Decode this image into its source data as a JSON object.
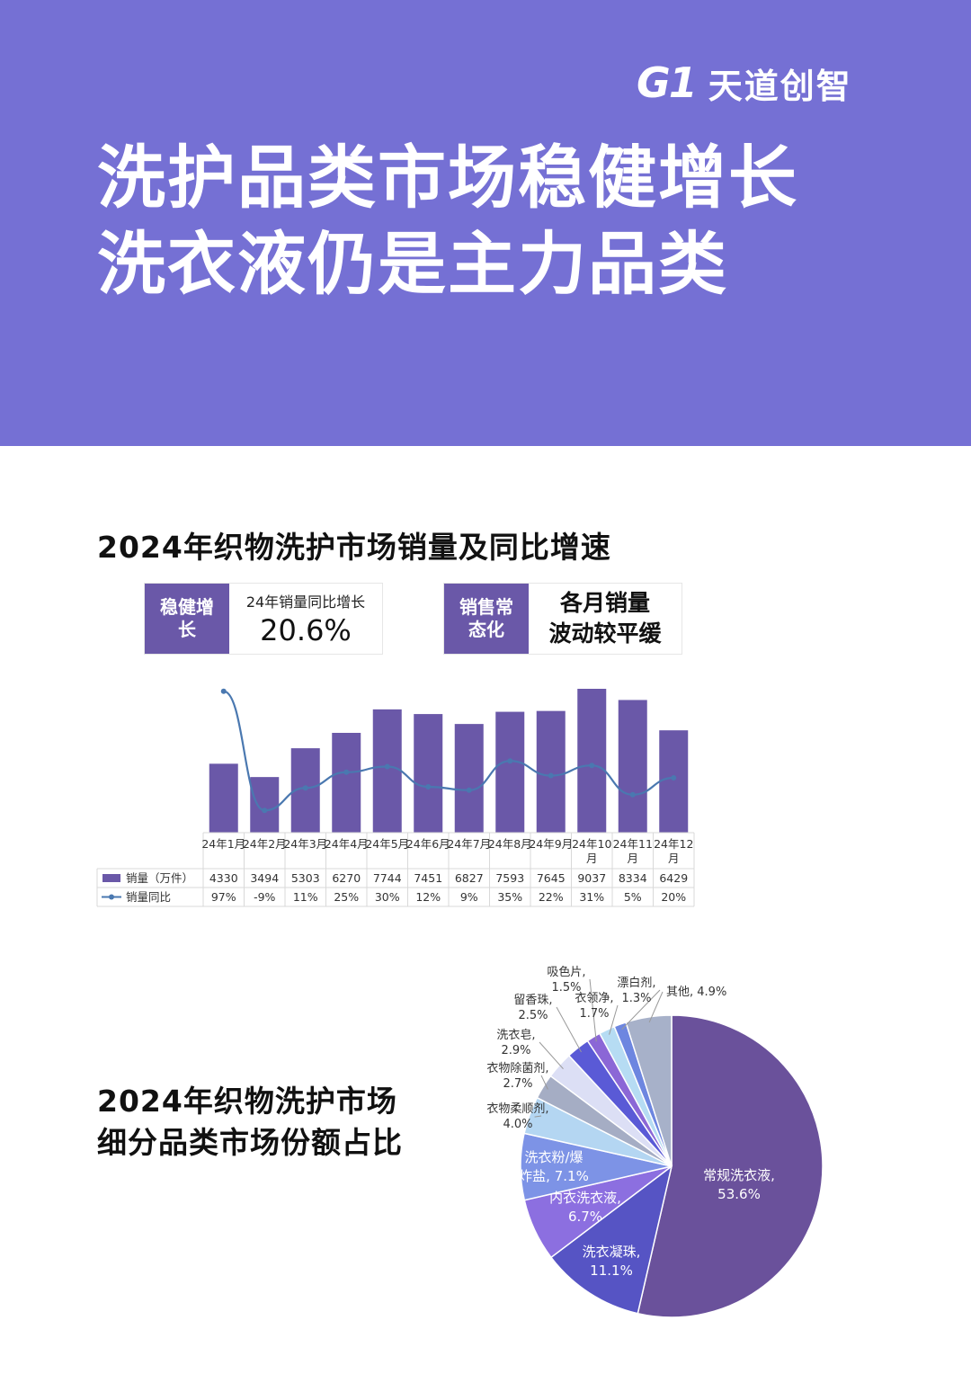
{
  "brand": {
    "logo_mark": "G1",
    "name": "天道创智"
  },
  "hero": {
    "title_line1": "洗护品类市场稳健增长",
    "title_line2": "洗衣液仍是主力品类"
  },
  "section1": {
    "title": "2024年织物洗护市场销量及同比增速",
    "kpi1": {
      "tag": "稳健增长",
      "label": "24年销量同比增长",
      "value": "20.6%"
    },
    "kpi2": {
      "tag": "销售常态化",
      "note_line1": "各月销量",
      "note_line2": "波动较平缓"
    }
  },
  "section2": {
    "title_line1": "2024年织物洗护市场",
    "title_line2": "细分品类市场份额占比"
  },
  "colors": {
    "hero_bg": "#7570d4",
    "bar": "#6a58a8",
    "line": "#4a78b0"
  },
  "chart_data": [
    {
      "type": "bar",
      "categories": [
        "24年1月",
        "24年2月",
        "24年3月",
        "24年4月",
        "24年5月",
        "24年6月",
        "24年7月",
        "24年8月",
        "24年9月",
        "24年10月",
        "24年11月",
        "24年12月"
      ],
      "series": [
        {
          "name": "销量（万件）",
          "type": "bar",
          "values": [
            4330,
            3494,
            5303,
            6270,
            7744,
            7451,
            6827,
            7593,
            7645,
            9037,
            8334,
            6429
          ]
        },
        {
          "name": "销量同比",
          "type": "line",
          "values": [
            97,
            -9,
            11,
            25,
            30,
            12,
            9,
            35,
            22,
            31,
            5,
            20
          ],
          "labels": [
            "97%",
            "-9%",
            "11%",
            "25%",
            "30%",
            "12%",
            "9%",
            "35%",
            "22%",
            "31%",
            "5%",
            "20%"
          ]
        }
      ],
      "table": true
    },
    {
      "type": "pie",
      "slices": [
        {
          "label": "常规洗衣液",
          "value": 53.6,
          "color": "#6a519b"
        },
        {
          "label": "洗衣凝珠",
          "value": 11.1,
          "color": "#5654c4"
        },
        {
          "label": "内衣洗衣液",
          "value": 6.7,
          "color": "#8c6fe0"
        },
        {
          "label": "洗衣粉/爆炸盐",
          "value": 7.1,
          "color": "#7d93e6"
        },
        {
          "label": "衣物柔顺剂",
          "value": 4.0,
          "color": "#b4d6f2"
        },
        {
          "label": "衣物除菌剂",
          "value": 2.7,
          "color": "#a5adc4"
        },
        {
          "label": "洗衣皂",
          "value": 2.9,
          "color": "#dcdff5"
        },
        {
          "label": "留香珠",
          "value": 2.5,
          "color": "#5a5ad6"
        },
        {
          "label": "吸色片",
          "value": 1.5,
          "color": "#8b67d6"
        },
        {
          "label": "衣领净",
          "value": 1.7,
          "color": "#b6dcf3"
        },
        {
          "label": "漂白剂",
          "value": 1.3,
          "color": "#6d86e0"
        },
        {
          "label": "其他",
          "value": 4.9,
          "color": "#a7b1c9"
        }
      ]
    }
  ]
}
